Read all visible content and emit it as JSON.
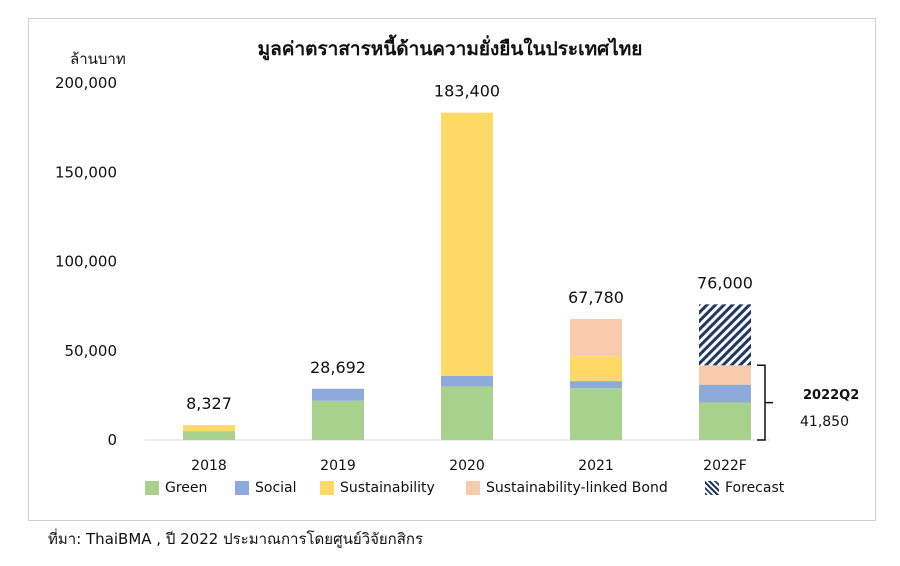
{
  "title": "มูลค่าตราสารหนี้ด้านความยั่งยืนในประเทศไทย",
  "unit_label": "ล้านบาท",
  "source_note": "ที่มา: ThaiBMA , ปี 2022 ประมาณการโดยศูนย์วิจัยกสิกร",
  "bracket": {
    "label": "2022Q2",
    "value": "41,850"
  },
  "colors": {
    "Green": "#a9d18e",
    "Social": "#8eaadb",
    "Sustainability": "#ffd966",
    "Sustainability-linked Bond": "#f8cbad",
    "Forecast": "#1f3864"
  },
  "legend": [
    {
      "name": "Green",
      "pattern": false
    },
    {
      "name": "Social",
      "pattern": false
    },
    {
      "name": "Sustainability",
      "pattern": false
    },
    {
      "name": "Sustainability-linked Bond",
      "pattern": false
    },
    {
      "name": "Forecast",
      "pattern": true
    }
  ],
  "chart_data": {
    "type": "bar",
    "stacked": true,
    "categories": [
      "2018",
      "2019",
      "2020",
      "2021",
      "2022F"
    ],
    "ylim": [
      0,
      200000
    ],
    "yticks": [
      0,
      50000,
      100000,
      150000,
      200000
    ],
    "ytick_labels": [
      "0",
      "50,000",
      "100,000",
      "150,000",
      "200,000"
    ],
    "totals": [
      "8,327",
      "28,692",
      "183,400",
      "67,780",
      "76,000"
    ],
    "series": [
      {
        "name": "Green",
        "values": [
          5000,
          22000,
          30000,
          29000,
          21000
        ]
      },
      {
        "name": "Social",
        "values": [
          0,
          6692,
          6000,
          4000,
          10000
        ]
      },
      {
        "name": "Sustainability",
        "values": [
          3327,
          0,
          147400,
          14000,
          0
        ]
      },
      {
        "name": "Sustainability-linked Bond",
        "values": [
          0,
          0,
          0,
          20780,
          10850
        ]
      },
      {
        "name": "Forecast",
        "values": [
          0,
          0,
          0,
          0,
          34150
        ]
      }
    ],
    "grid": false,
    "legend_position": "bottom"
  }
}
